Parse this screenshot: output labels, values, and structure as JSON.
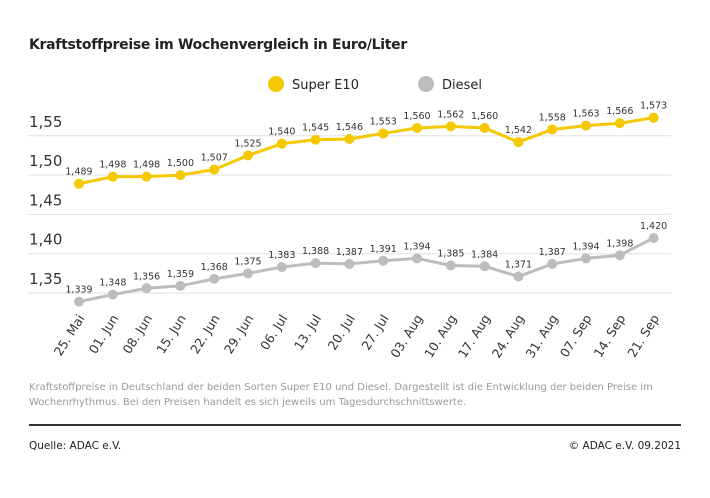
{
  "chart_data": {
    "type": "line",
    "title": "Kraftstoffpreise im Wochenvergleich in Euro/Liter",
    "categories": [
      "25. Mai",
      "01. Jun",
      "08. Jun",
      "15. Jun",
      "22. Jun",
      "29. Jun",
      "06. Jul",
      "13. Jul",
      "20. Jul",
      "27. Jul",
      "03. Aug",
      "10. Aug",
      "17. Aug",
      "24. Aug",
      "31. Aug",
      "07. Sep",
      "14. Sep",
      "21. Sep"
    ],
    "series": [
      {
        "name": "Super E10",
        "color": "#f5c800",
        "values": [
          1.489,
          1.498,
          1.498,
          1.5,
          1.507,
          1.525,
          1.54,
          1.545,
          1.546,
          1.553,
          1.56,
          1.562,
          1.56,
          1.542,
          1.558,
          1.563,
          1.566,
          1.573
        ],
        "labels": [
          "1,489",
          "1,498",
          "1,498",
          "1,500",
          "1,507",
          "1,525",
          "1,540",
          "1,545",
          "1,546",
          "1,553",
          "1,560",
          "1,562",
          "1,560",
          "1,542",
          "1,558",
          "1,563",
          "1,566",
          "1,573"
        ]
      },
      {
        "name": "Diesel",
        "color": "#bdbdbd",
        "values": [
          1.339,
          1.348,
          1.356,
          1.359,
          1.368,
          1.375,
          1.383,
          1.388,
          1.387,
          1.391,
          1.394,
          1.385,
          1.384,
          1.371,
          1.387,
          1.394,
          1.398,
          1.42
        ],
        "labels": [
          "1,339",
          "1,348",
          "1,356",
          "1,359",
          "1,368",
          "1,375",
          "1,383",
          "1,388",
          "1,387",
          "1,391",
          "1,394",
          "1,385",
          "1,384",
          "1,371",
          "1,387",
          "1,394",
          "1,398",
          "1,420"
        ]
      }
    ],
    "yticks": [
      1.35,
      1.4,
      1.45,
      1.5,
      1.55
    ],
    "ytick_labels": [
      "1,35",
      "1,40",
      "1,45",
      "1,50",
      "1,55"
    ],
    "ylim": [
      1.35,
      1.55
    ],
    "grid": "horizontal",
    "legend": "top-center",
    "xlabel": "",
    "ylabel": ""
  },
  "note": "Kraftstoffpreise in Deutschland der beiden Sorten Super E10 und Diesel. Dargestellt ist die Entwicklung der beiden Preise im Wochenrhythmus. Bei den Preisen handelt es sich jeweils um Tagesdurchschnittswerte.",
  "footer": {
    "source": "Quelle: ADAC e.V.",
    "copyright": "© ADAC e.V. 09.2021"
  }
}
